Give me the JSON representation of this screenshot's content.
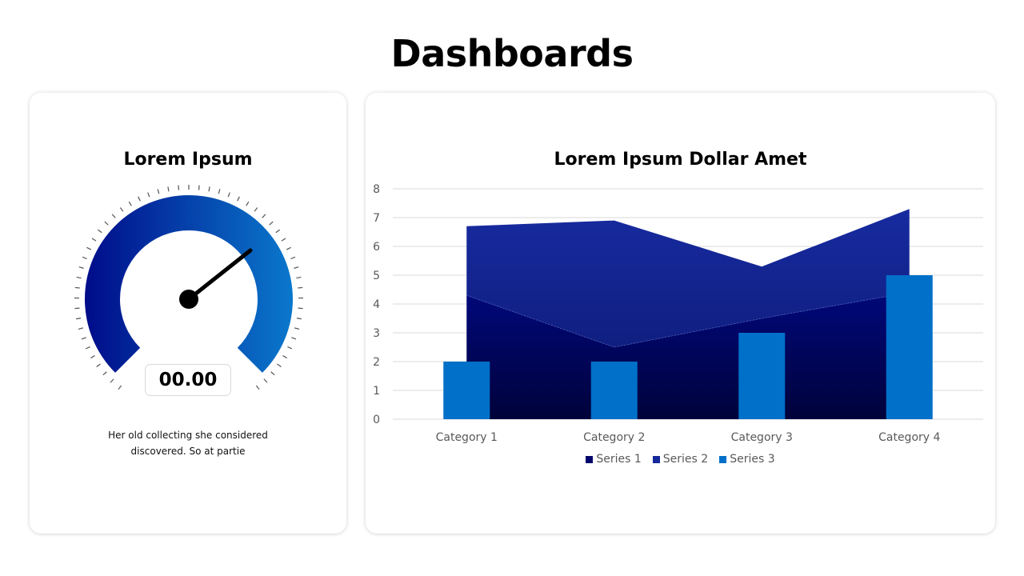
{
  "page": {
    "title": "Dashboards"
  },
  "gauge_card": {
    "title": "Lorem Ipsum",
    "value": "00.00",
    "description_line1": "Her old collecting she considered",
    "description_line2": "discovered. So at partie",
    "gradient_start": "#000C8A",
    "gradient_end": "#0A78CC",
    "needle_color": "#000000"
  },
  "chart_card": {
    "title": "Lorem Ipsum Dollar Amet",
    "legend": [
      {
        "label": "Series 1",
        "color": "#00066B"
      },
      {
        "label": "Series 2",
        "color": "#15299A"
      },
      {
        "label": "Series 3",
        "color": "#0070C8"
      }
    ]
  },
  "chart_data": {
    "type": "area",
    "title": "Lorem Ipsum Dollar Amet",
    "categories": [
      "Category 1",
      "Category 2",
      "Category 3",
      "Category 4"
    ],
    "series": [
      {
        "name": "Series 1",
        "type": "stacked-area",
        "values": [
          4.3,
          2.5,
          3.5,
          4.4
        ],
        "color": "#00066B"
      },
      {
        "name": "Series 2",
        "type": "stacked-area",
        "values": [
          2.4,
          4.4,
          1.8,
          2.9
        ],
        "color": "#15299A"
      },
      {
        "name": "Series 3",
        "type": "bar",
        "values": [
          2,
          2,
          3,
          5
        ],
        "color": "#0070C8"
      }
    ],
    "xlabel": "",
    "ylabel": "",
    "ylim": [
      0,
      8
    ],
    "yticks": [
      "0",
      "1",
      "2",
      "3",
      "4",
      "5",
      "6",
      "7",
      "8"
    ],
    "grid": true,
    "legend_position": "bottom"
  }
}
